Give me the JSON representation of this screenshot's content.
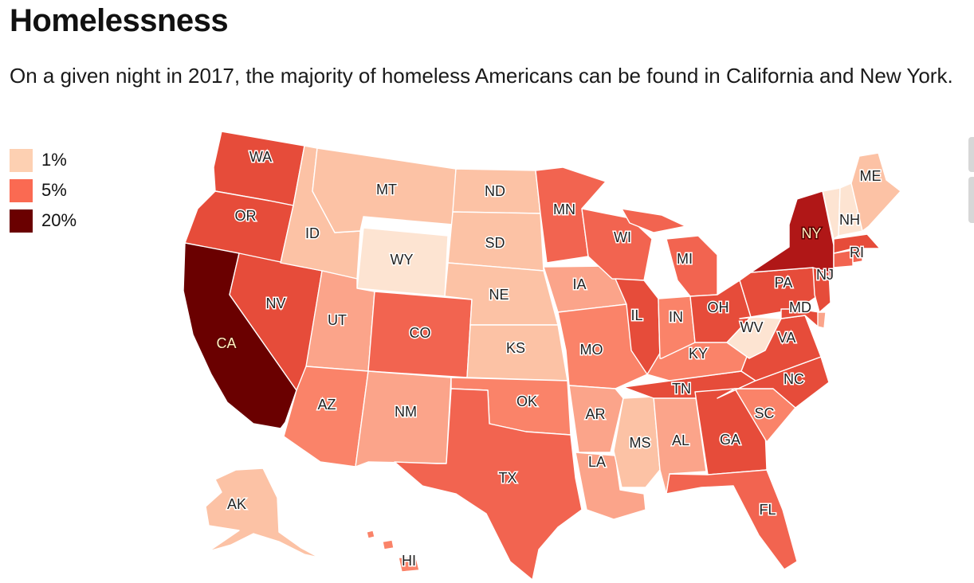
{
  "title": "Homelessness",
  "subtitle": "On a given night in 2017, the majority of homeless Americans can be found in California and New York.",
  "legend": [
    {
      "label": "1%",
      "color": "#fdd0b2"
    },
    {
      "label": "5%",
      "color": "#fa6a52"
    },
    {
      "label": "20%",
      "color": "#6a0000"
    }
  ],
  "colors": {
    "lightest": "#fde4d2",
    "light": "#fcc2a5",
    "lightmid": "#fba48a",
    "mid": "#fa8369",
    "midhigh": "#f26450",
    "high": "#e64c3a",
    "dark": "#b01717",
    "darkest": "#6a0000"
  },
  "states": [
    "WA",
    "OR",
    "CA",
    "NV",
    "ID",
    "MT",
    "WY",
    "UT",
    "AZ",
    "CO",
    "NM",
    "ND",
    "SD",
    "NE",
    "KS",
    "OK",
    "TX",
    "MN",
    "IA",
    "MO",
    "AR",
    "LA",
    "WI",
    "IL",
    "MS",
    "AL",
    "TN",
    "KY",
    "IN",
    "MI",
    "OH",
    "GA",
    "FL",
    "SC",
    "NC",
    "VA",
    "WV",
    "PA",
    "NY",
    "MD",
    "NJ",
    "RI",
    "NH",
    "ME",
    "AK",
    "HI"
  ]
}
